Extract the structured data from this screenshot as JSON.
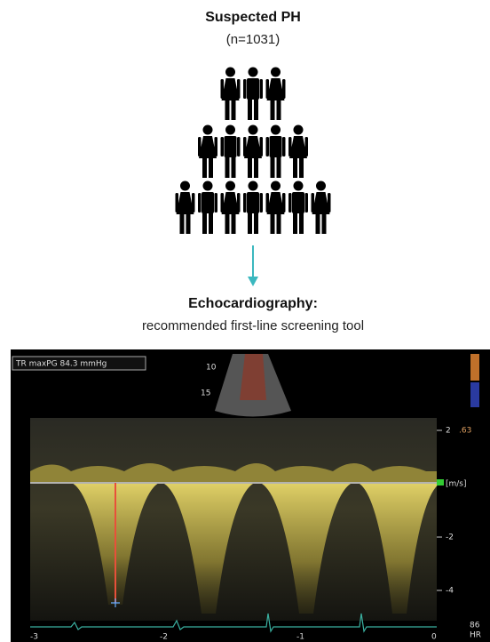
{
  "header": {
    "title": "Suspected PH",
    "subtitle": "(n=1031)"
  },
  "step": {
    "title": "Echocardiography:",
    "subtitle": "recommended first-line screening tool"
  },
  "echo": {
    "measurement": "TR maxPG  84.3 mmHg",
    "depth_labels": [
      "10",
      "15"
    ],
    "velocity_labels": [
      "2",
      ".63",
      "[m/s]",
      "-2",
      "-4"
    ],
    "time_labels": [
      "-3",
      "-2",
      "-1",
      "0"
    ],
    "hr": {
      "value": "86",
      "label": "HR"
    }
  }
}
